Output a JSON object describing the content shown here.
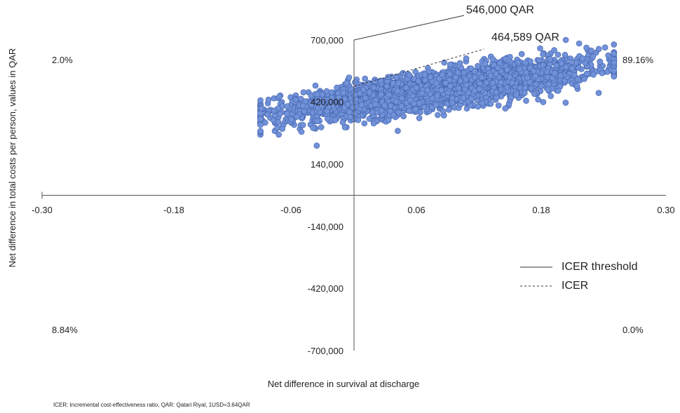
{
  "chart_data": {
    "type": "scatter",
    "xlabel": "Net difference in survival at discharge",
    "ylabel": "Net difference in total costs per person, values in QAR",
    "xlim": [
      -0.3,
      0.3
    ],
    "ylim": [
      -700000,
      700000
    ],
    "x_ticks": [
      "-0.30",
      "-0.18",
      "-0.06",
      "0.06",
      "0.18",
      "0.30"
    ],
    "y_ticks": [
      "700,000",
      "420,000",
      "140,000",
      "-140,000",
      "-420,000",
      "-700,000"
    ],
    "grid": false,
    "quadrant_percentages": {
      "top_left": "2.0%",
      "top_right": "89.16%",
      "bottom_left": "8.84%",
      "bottom_right": "0.0%"
    },
    "annotations": {
      "icer_threshold_label": "546,000 QAR",
      "icer_label": "464,589  QAR"
    },
    "legend": {
      "position": "lower-right",
      "items": [
        {
          "label": "ICER threshold",
          "style": "solid"
        },
        {
          "label": "ICER",
          "style": "dashed"
        }
      ]
    },
    "lines": {
      "icer_threshold": {
        "slope": 546000,
        "x": [
          0,
          0.02
        ]
      },
      "icer": {
        "slope": 464589,
        "x": [
          0,
          0.125
        ]
      }
    },
    "cloud": {
      "n_points": 3000,
      "x_range": [
        -0.09,
        0.25
      ],
      "y_at_x_min": 360000,
      "y_at_x_max": 590000,
      "y_spread": 75000,
      "color": "#7191D9",
      "edge_color": "#3E5FA8"
    },
    "footnote": "ICER: Incremental cost-effectiveness ratio, QAR: Qatari Riyal, 1USD=3.64QAR"
  }
}
